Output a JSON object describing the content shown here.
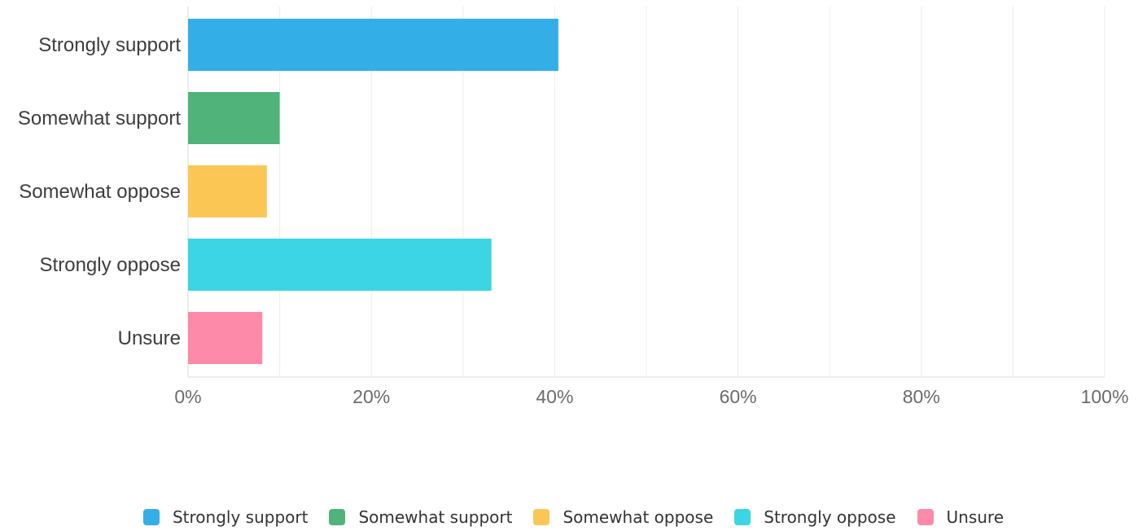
{
  "chart_data": {
    "type": "bar",
    "orientation": "horizontal",
    "categories": [
      "Strongly support",
      "Somewhat support",
      "Somewhat oppose",
      "Strongly oppose",
      "Unsure"
    ],
    "values": [
      40.4,
      10.0,
      8.6,
      33.1,
      8.1
    ],
    "colors": [
      "#34aee6",
      "#4fb37a",
      "#fcc655",
      "#3bd5e5",
      "#fd8aa8"
    ],
    "xlim": [
      0,
      100
    ],
    "xticks": [
      0,
      20,
      40,
      60,
      80,
      100
    ],
    "xtick_labels": [
      "0%",
      "20%",
      "40%",
      "60%",
      "80%",
      "100%"
    ],
    "grid": true,
    "title": "",
    "xlabel": "",
    "ylabel": "",
    "legend_position": "bottom"
  },
  "legend": {
    "items": [
      {
        "label": "Strongly support",
        "color": "#34aee6"
      },
      {
        "label": "Somewhat support",
        "color": "#4fb37a"
      },
      {
        "label": "Somewhat oppose",
        "color": "#fcc655"
      },
      {
        "label": "Strongly oppose",
        "color": "#3bd5e5"
      },
      {
        "label": "Unsure",
        "color": "#fd8aa8"
      }
    ]
  }
}
